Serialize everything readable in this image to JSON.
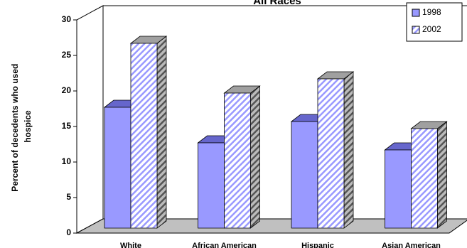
{
  "chart_data": {
    "type": "bar3d",
    "title": "All Races",
    "ylabel": [
      "Percent of decedents who used",
      "hospice"
    ],
    "categories": [
      "White",
      "African American",
      "Hispanic",
      "Asian American"
    ],
    "series": [
      {
        "name": "1998",
        "color": "#9999ff",
        "values": [
          17,
          12,
          15,
          11
        ]
      },
      {
        "name": "2002",
        "color": "#ccccff",
        "values": [
          26,
          19,
          21,
          14
        ]
      }
    ],
    "ylim": [
      0,
      30
    ],
    "yticks": [
      0,
      5,
      10,
      15,
      20,
      25,
      30
    ],
    "legend": "upper right"
  }
}
